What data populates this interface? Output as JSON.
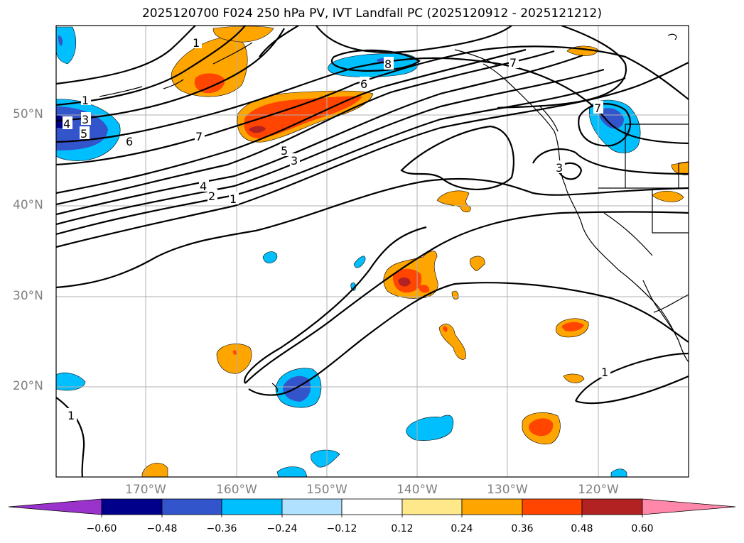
{
  "title": "2025120700 F024 250 hPa PV, IVT Landfall PC (2025120912 - 2025121212)",
  "lat_labels": [
    "50°N",
    "40°N",
    "30°N",
    "20°N"
  ],
  "lon_labels": [
    "170°W",
    "160°W",
    "150°W",
    "140°W",
    "130°W",
    "120°W"
  ],
  "colorbar": {
    "ticks": [
      "−0.60",
      "−0.48",
      "−0.36",
      "−0.24",
      "−0.12",
      "0.12",
      "0.24",
      "0.36",
      "0.48",
      "0.60"
    ],
    "colors": [
      "#9933cc",
      "#00008b",
      "#3355cc",
      "#00bfff",
      "#b0e2ff",
      "#ffffff",
      "#ffe88a",
      "#ffa500",
      "#ff4500",
      "#b22222",
      "#ff88aa"
    ]
  },
  "contour_labels": [
    "1",
    "3",
    "4",
    "5",
    "6",
    "7",
    "6",
    "8",
    "7",
    "5",
    "3",
    "4",
    "2",
    "1",
    "7",
    "3",
    "1",
    "1",
    "1"
  ]
}
